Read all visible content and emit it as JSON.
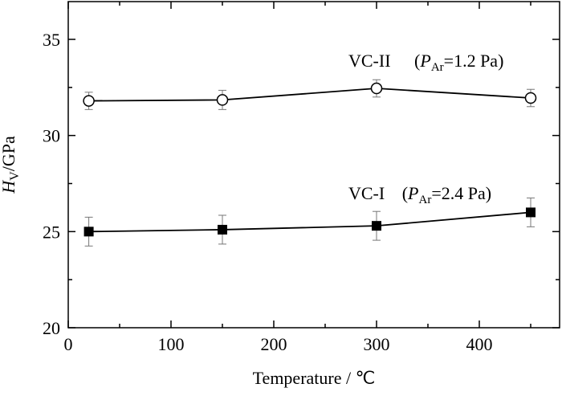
{
  "chart_data": {
    "type": "line",
    "xlabel": "Temperature / ℃",
    "ylabel": {
      "main": "H",
      "sub": "V",
      "rest": "/GPa"
    },
    "xlim": [
      0,
      450
    ],
    "ylim": [
      20,
      35
    ],
    "xticks": [
      0,
      100,
      200,
      300,
      400
    ],
    "yticks": [
      20,
      25,
      30,
      35
    ],
    "x": [
      20,
      150,
      300,
      450
    ],
    "grid": false,
    "series": [
      {
        "name": "VC-II",
        "condition": {
          "symbol": "P",
          "sub": "Ar",
          "value": "=1.2 Pa"
        },
        "marker": "open-circle",
        "values": [
          31.8,
          31.85,
          32.45,
          31.95
        ],
        "errors": [
          0.45,
          0.5,
          0.45,
          0.45
        ]
      },
      {
        "name": "VC-I",
        "condition": {
          "symbol": "P",
          "sub": "Ar",
          "value": "=2.4 Pa"
        },
        "marker": "filled-square",
        "values": [
          25.0,
          25.1,
          25.3,
          26.0
        ],
        "errors": [
          0.75,
          0.75,
          0.75,
          0.75
        ]
      }
    ]
  }
}
